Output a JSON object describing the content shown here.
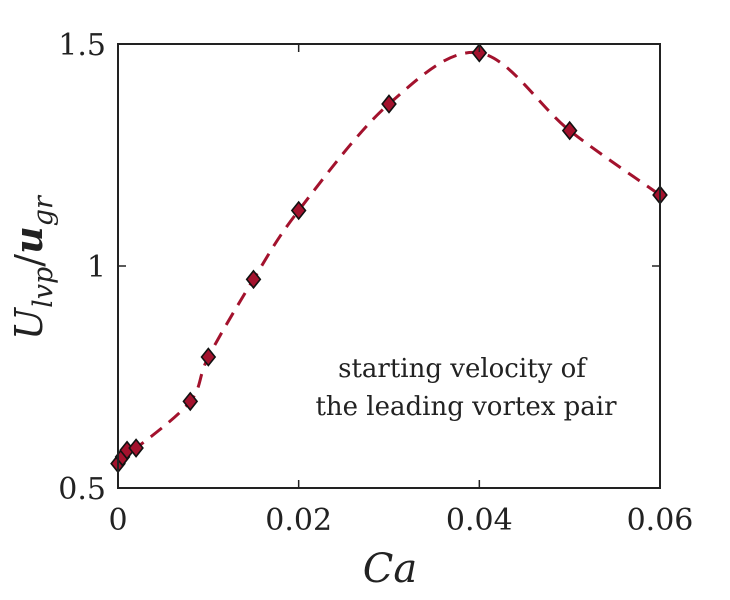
{
  "chart_data": {
    "type": "line",
    "x_label": "Ca",
    "y_label_main": "U",
    "y_label_main_sub": "lvp",
    "y_label_slash": "/",
    "y_label_den": "u",
    "y_label_den_sub": "gr",
    "annotation_line1": "starting velocity of",
    "annotation_line2": "the leading vortex pair",
    "xlim": [
      0,
      0.06
    ],
    "ylim": [
      0.5,
      1.5
    ],
    "x_ticks": [
      0,
      0.02,
      0.04,
      0.06
    ],
    "x_tick_labels": [
      "0",
      "0.02",
      "0.04",
      "0.06"
    ],
    "y_ticks": [
      0.5,
      1.0,
      1.5
    ],
    "y_tick_labels": [
      "0.5",
      "1",
      "1.5"
    ],
    "grid": false,
    "marker_color": "#a3122d",
    "line_color": "#a3122d",
    "series": [
      {
        "marker": "diamond",
        "line_style": "dashed",
        "x": [
          0.0,
          0.0005,
          0.001,
          0.002,
          0.008,
          0.01,
          0.015,
          0.02,
          0.03,
          0.04,
          0.05,
          0.06
        ],
        "y": [
          0.555,
          0.57,
          0.585,
          0.59,
          0.695,
          0.795,
          0.97,
          1.125,
          1.365,
          1.48,
          1.305,
          1.16
        ]
      }
    ]
  }
}
